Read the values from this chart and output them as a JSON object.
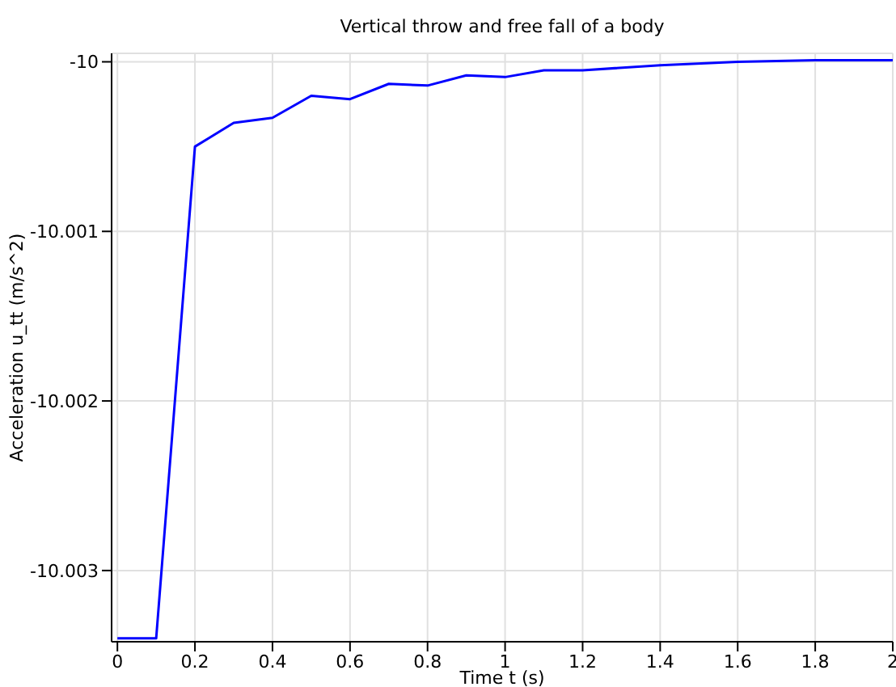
{
  "chart_data": {
    "type": "line",
    "title": "Vertical throw and free fall of a body",
    "xlabel": "Time t (s)",
    "ylabel": "Acceleration u_tt (m/s^2)",
    "x": [
      0,
      0.1,
      0.2,
      0.3,
      0.4,
      0.5,
      0.6,
      0.7,
      0.8,
      0.9,
      1.0,
      1.1,
      1.2,
      1.4,
      1.6,
      1.8,
      2.0
    ],
    "series": [
      {
        "color": "#0000ff",
        "values": [
          -10.0034,
          -10.0034,
          -10.0005,
          -10.00036,
          -10.00033,
          -10.0002,
          -10.00022,
          -10.00013,
          -10.00014,
          -10.00008,
          -10.00009,
          -10.00005,
          -10.00005,
          -10.00002,
          -10.0,
          -9.99999,
          -9.99999
        ]
      }
    ],
    "xlim": [
      -0.015,
      2
    ],
    "xticks": [
      0,
      0.2,
      0.4,
      0.6,
      0.8,
      1,
      1.2,
      1.4,
      1.6,
      1.8,
      2
    ],
    "ylim": [
      -10.00342,
      -9.99995
    ],
    "yticks": [
      -10.003,
      -10.002,
      -10.001,
      -10
    ],
    "grid": true,
    "legend": false,
    "marker": "none",
    "line_style": "solid"
  }
}
